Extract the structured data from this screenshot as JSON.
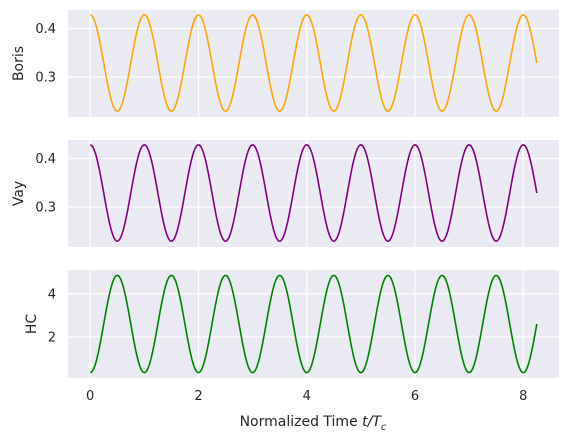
{
  "chart_data": [
    {
      "type": "line",
      "ylabel": "Boris",
      "xlim": [
        -0.41,
        8.66
      ],
      "ylim": [
        0.218,
        0.438
      ],
      "yticks": [
        0.3,
        0.4
      ],
      "ytick_labels": [
        "0.3",
        "0.4"
      ],
      "grid": true,
      "series": [
        {
          "color": "#FFA500",
          "x_start": 0,
          "x_end": 8.25,
          "period": 1.0,
          "phase": "max",
          "min": 0.23,
          "max": 0.428
        }
      ]
    },
    {
      "type": "line",
      "ylabel": "Vay",
      "xlim": [
        -0.41,
        8.66
      ],
      "ylim": [
        0.218,
        0.438
      ],
      "yticks": [
        0.3,
        0.4
      ],
      "ytick_labels": [
        "0.3",
        "0.4"
      ],
      "grid": true,
      "series": [
        {
          "color": "#800080",
          "x_start": 0,
          "x_end": 8.25,
          "period": 1.0,
          "phase": "max",
          "min": 0.23,
          "max": 0.428
        }
      ]
    },
    {
      "type": "line",
      "ylabel": "HC",
      "xlabel": "Normalized Time",
      "xlabel_math_base": "t/T",
      "xlabel_math_sub": "c",
      "xlim": [
        -0.41,
        8.66
      ],
      "ylim": [
        0.1,
        5.1
      ],
      "yticks": [
        2,
        4
      ],
      "ytick_labels": [
        "2",
        "4"
      ],
      "xticks": [
        0,
        2,
        4,
        6,
        8
      ],
      "xtick_labels": [
        "0",
        "2",
        "4",
        "6",
        "8"
      ],
      "grid": true,
      "series": [
        {
          "color": "#008000",
          "x_start": 0,
          "x_end": 8.25,
          "period": 1.0,
          "phase": "min",
          "min": 0.35,
          "max": 4.85
        }
      ]
    }
  ]
}
